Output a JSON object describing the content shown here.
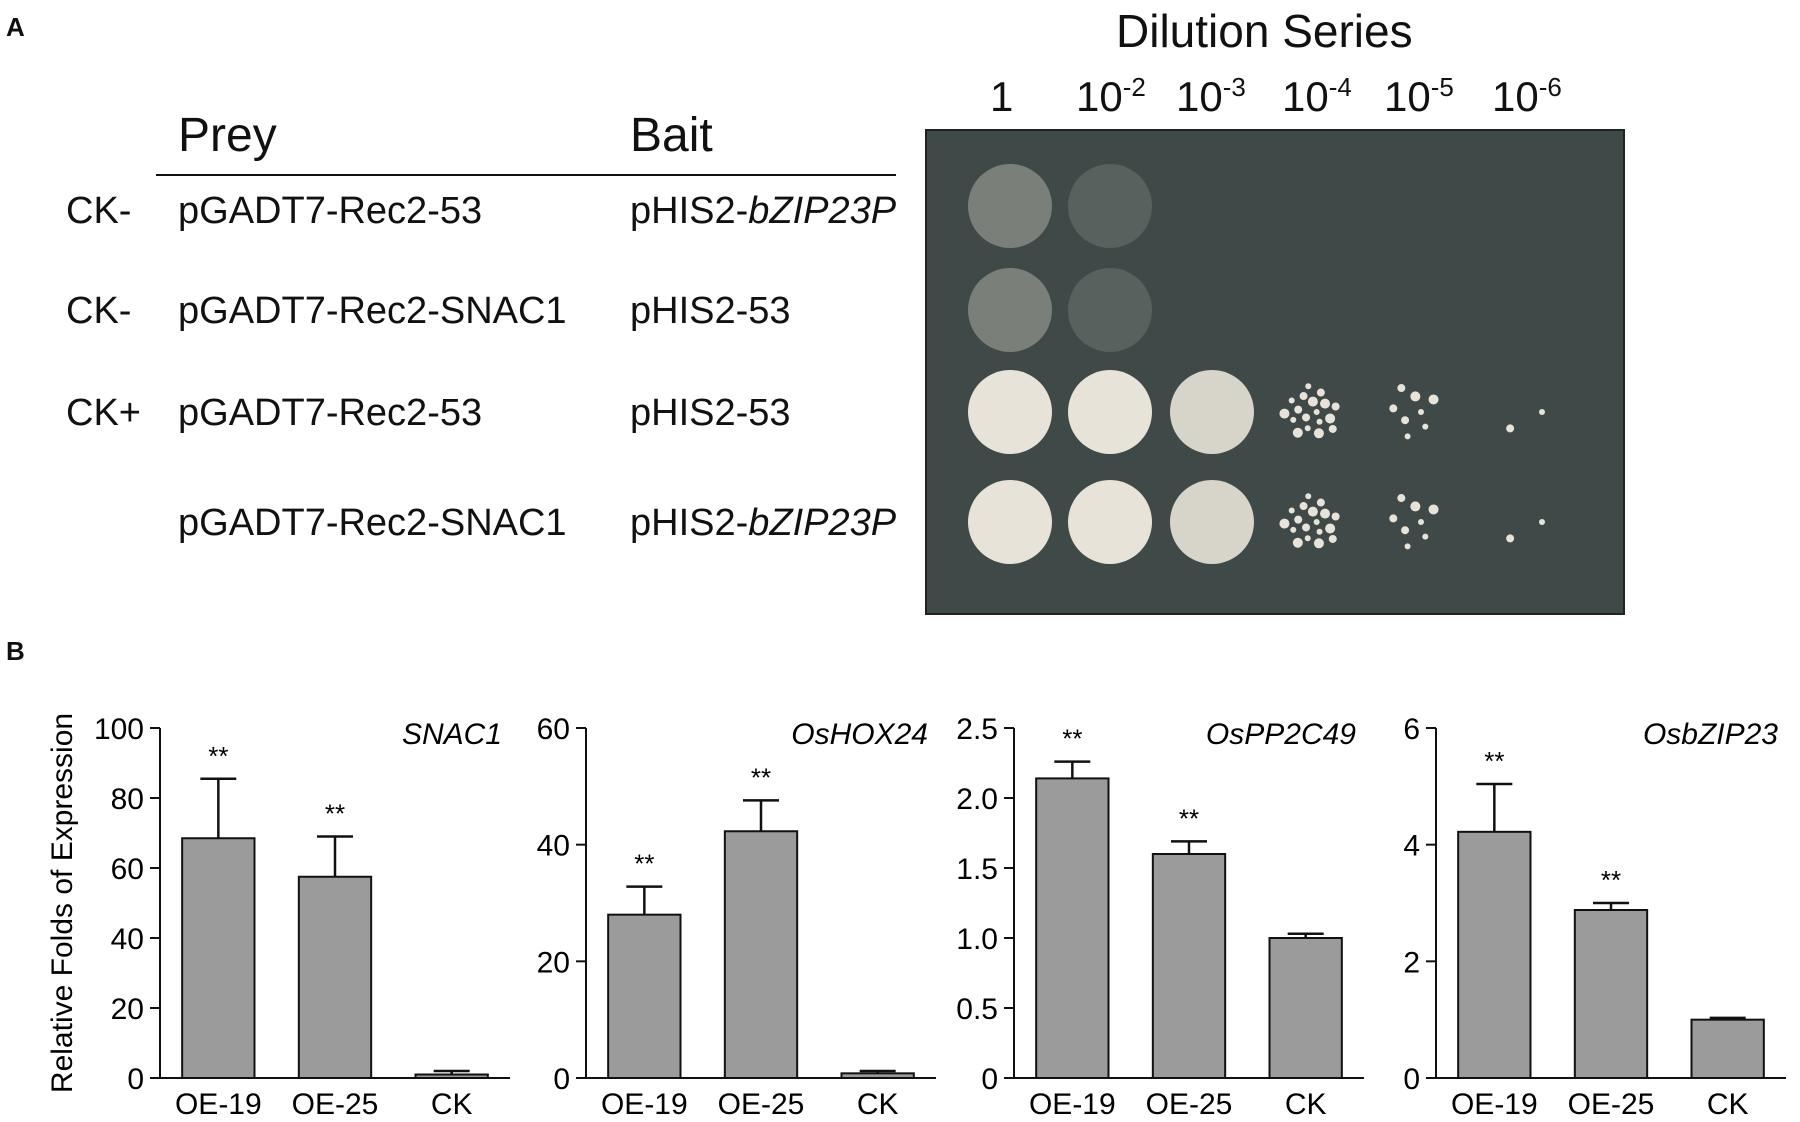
{
  "panel_a": {
    "letter": "A",
    "dilution_title": "Dilution Series",
    "dilutions": [
      {
        "base": "1",
        "exp": ""
      },
      {
        "base": "10",
        "exp": "-2"
      },
      {
        "base": "10",
        "exp": "-3"
      },
      {
        "base": "10",
        "exp": "-4"
      },
      {
        "base": "10",
        "exp": "-5"
      },
      {
        "base": "10",
        "exp": "-6"
      }
    ],
    "header_prey": "Prey",
    "header_bait": "Bait",
    "rows": [
      {
        "control": "CK-",
        "prey": "pGADT7-Rec2-53",
        "bait_prefix": "pHIS2-",
        "bait_italic": "bZIP23P",
        "growth": [
          0.35,
          0.15,
          0,
          0,
          0,
          0
        ]
      },
      {
        "control": "CK-",
        "prey": "pGADT7-Rec2-SNAC1",
        "bait_prefix": "pHIS2-53",
        "bait_italic": "",
        "growth": [
          0.35,
          0.15,
          0,
          0,
          0,
          0
        ]
      },
      {
        "control": "CK+",
        "prey": "pGADT7-Rec2-53",
        "bait_prefix": "pHIS2-53",
        "bait_italic": "",
        "growth": [
          1,
          1,
          0.9,
          0.75,
          0.35,
          0.05
        ]
      },
      {
        "control": "",
        "prey": "pGADT7-Rec2-SNAC1",
        "bait_prefix": "pHIS2-",
        "bait_italic": "bZIP23P",
        "growth": [
          1,
          1,
          0.9,
          0.75,
          0.35,
          0.03
        ]
      }
    ],
    "colors": {
      "plate": "#3f4a48",
      "colony": "#e8e3d8"
    }
  },
  "panel_b": {
    "letter": "B",
    "ylabel": "Relative Folds of Expression",
    "bar_color": "#9b9b9b"
  },
  "chart_data": [
    {
      "type": "bar",
      "title": "SNAC1",
      "categories": [
        "OE-19",
        "OE-25",
        "CK"
      ],
      "values": [
        68.5,
        57.5,
        1.0
      ],
      "errors": [
        17,
        11.5,
        1.0
      ],
      "significance": [
        "**",
        "**",
        ""
      ],
      "ylim": [
        0,
        100
      ],
      "yticks": [
        "0",
        "20",
        "40",
        "60",
        "80",
        "100"
      ],
      "ytick_values": [
        0,
        20,
        40,
        60,
        80,
        100
      ],
      "ylabel": "Relative Folds of Expression"
    },
    {
      "type": "bar",
      "title": "OsHOX24",
      "categories": [
        "OE-19",
        "OE-25",
        "CK"
      ],
      "values": [
        28,
        42.3,
        0.8
      ],
      "errors": [
        4.8,
        5.3,
        0.4
      ],
      "significance": [
        "**",
        "**",
        ""
      ],
      "ylim": [
        0,
        60
      ],
      "yticks": [
        "0",
        "20",
        "40",
        "60"
      ],
      "ytick_values": [
        0,
        20,
        40,
        60
      ],
      "ylabel": ""
    },
    {
      "type": "bar",
      "title": "OsPP2C49",
      "categories": [
        "OE-19",
        "OE-25",
        "CK"
      ],
      "values": [
        2.14,
        1.6,
        1.0
      ],
      "errors": [
        0.12,
        0.09,
        0.03
      ],
      "significance": [
        "**",
        "**",
        ""
      ],
      "ylim": [
        0,
        2.5
      ],
      "yticks": [
        "0",
        "0.5",
        "1.0",
        "1.5",
        "2.0",
        "2.5"
      ],
      "ytick_values": [
        0,
        0.5,
        1.0,
        1.5,
        2.0,
        2.5
      ],
      "ylabel": ""
    },
    {
      "type": "bar",
      "title": "OsbZIP23",
      "categories": [
        "OE-19",
        "OE-25",
        "CK"
      ],
      "values": [
        4.22,
        2.88,
        1.0
      ],
      "errors": [
        0.82,
        0.12,
        0.03
      ],
      "significance": [
        "**",
        "**",
        ""
      ],
      "ylim": [
        0,
        6
      ],
      "yticks": [
        "0",
        "2",
        "4",
        "6"
      ],
      "ytick_values": [
        0,
        2,
        4,
        6
      ],
      "ylabel": ""
    }
  ]
}
